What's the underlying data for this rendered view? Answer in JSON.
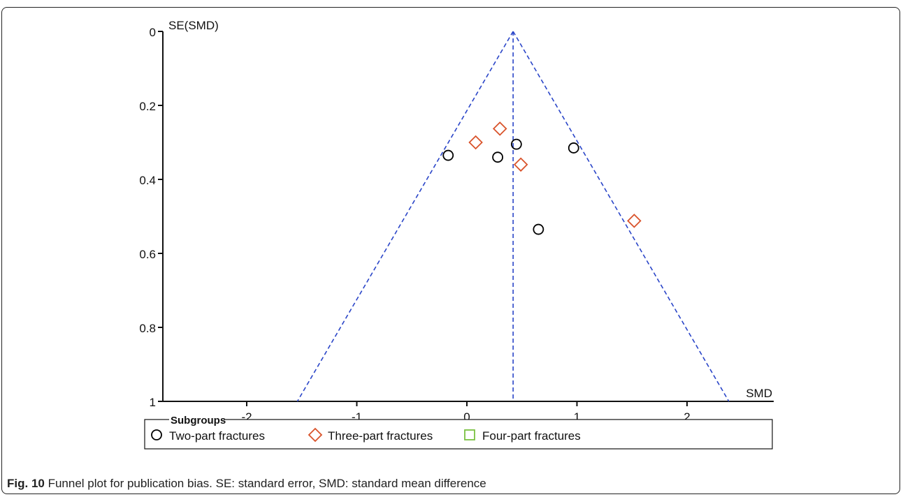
{
  "colors": {
    "axis": "#111111",
    "funnel": "#2a45c8",
    "two_part": "#000000",
    "three_part": "#d9532b",
    "four_part": "#7ac142"
  },
  "chart_data": {
    "type": "scatter",
    "xlabel": "SMD",
    "ylabel": "SE(SMD)",
    "xlim": [
      -2.8,
      2.9
    ],
    "ylim": [
      0,
      1
    ],
    "y_inverted": true,
    "x_ticks": [
      -2,
      -1,
      0,
      1,
      2
    ],
    "y_ticks": [
      0,
      0.2,
      0.4,
      0.6,
      0.8,
      1
    ],
    "x_tick_labels": [
      "-2",
      "-1",
      "0",
      "1",
      "2"
    ],
    "y_tick_labels": [
      "0",
      "0.2",
      "0.4",
      "0.6",
      "0.8",
      "1"
    ],
    "grid": false,
    "funnel": {
      "center": 0.42,
      "apex_se": 0,
      "bottom_se": 1,
      "bottom_left": -1.54,
      "bottom_right": 2.38
    },
    "legend_title": "Subgroups",
    "legend_position": "bottom",
    "series": [
      {
        "name": "Two-part fractures",
        "marker": "circle",
        "color": "#000000",
        "points": [
          [
            -0.17,
            0.335
          ],
          [
            0.28,
            0.34
          ],
          [
            0.45,
            0.305
          ],
          [
            0.97,
            0.315
          ],
          [
            0.65,
            0.535
          ]
        ]
      },
      {
        "name": "Three-part fractures",
        "marker": "diamond",
        "color": "#d9532b",
        "points": [
          [
            0.08,
            0.3
          ],
          [
            0.3,
            0.263
          ],
          [
            0.49,
            0.36
          ],
          [
            1.52,
            0.512
          ]
        ]
      },
      {
        "name": "Four-part fractures",
        "marker": "square",
        "color": "#7ac142",
        "points": []
      }
    ]
  },
  "caption": {
    "label": "Fig. 10",
    "text": " Funnel plot for publication bias. SE: standard error, SMD: standard mean difference"
  }
}
